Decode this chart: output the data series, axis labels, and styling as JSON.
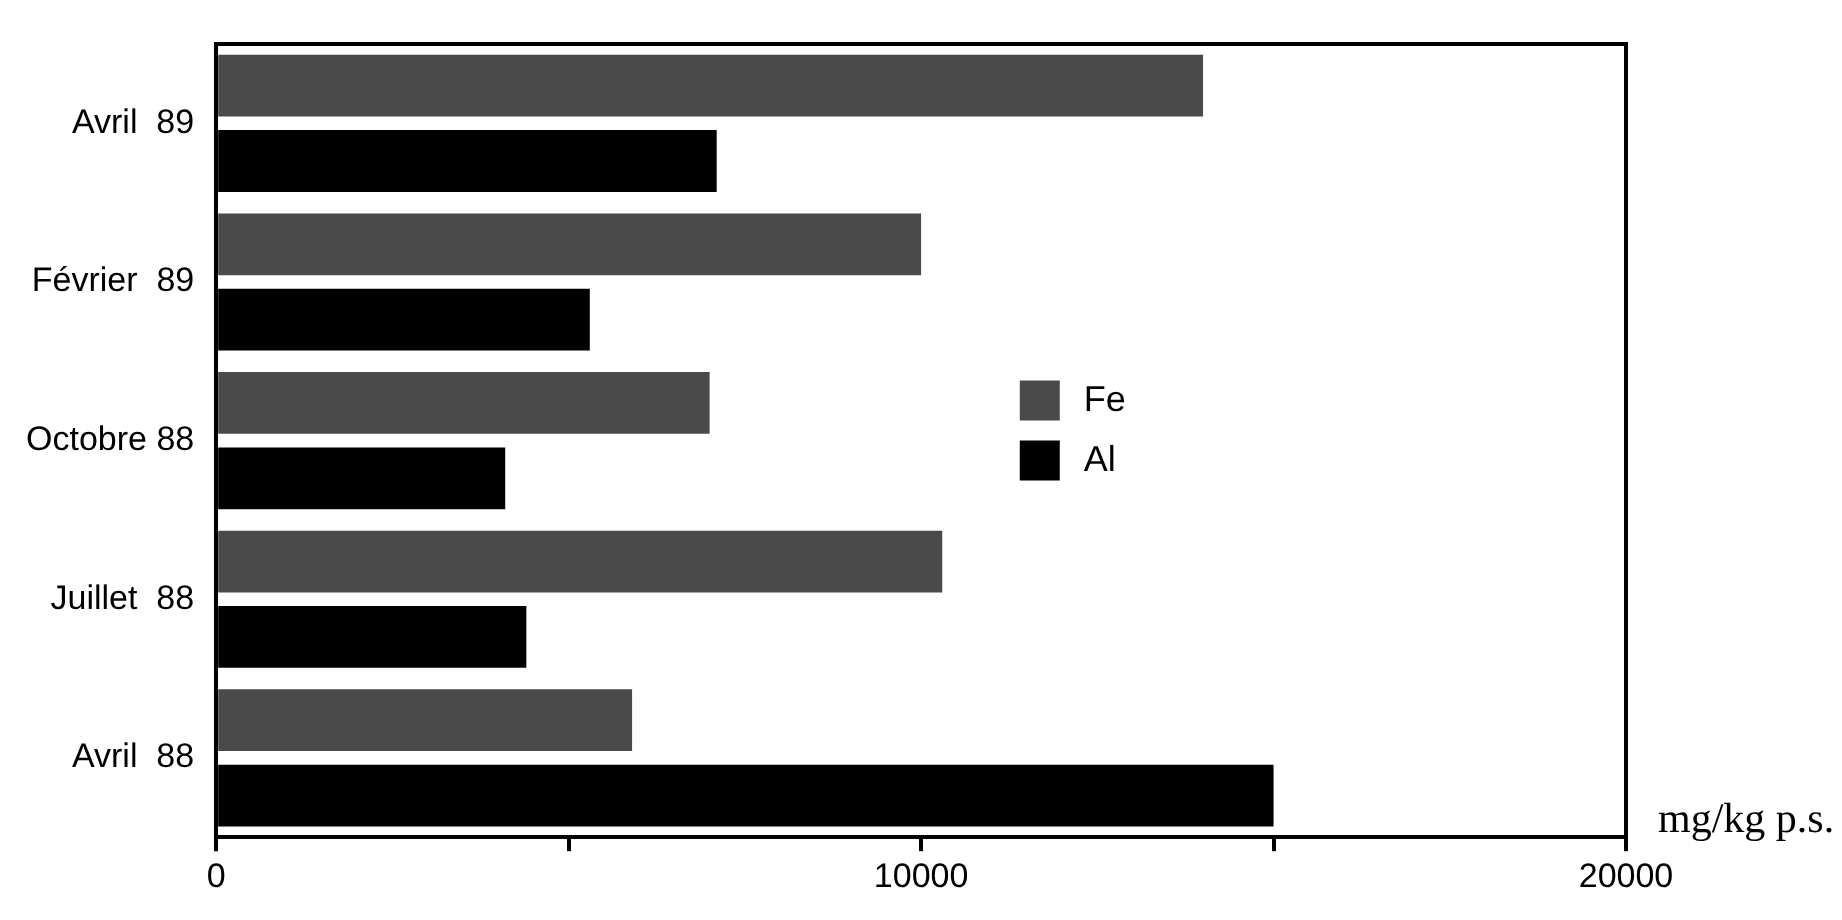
{
  "chart_data": {
    "type": "bar",
    "orientation": "horizontal",
    "xlabel": "mg/kg p.s.",
    "categories": [
      "Avril  89",
      "Février  89",
      "Octobre 88",
      "Juillet  88",
      "Avril  88"
    ],
    "series": [
      {
        "name": "Fe",
        "color": "#4a4a4a",
        "values": [
          14000,
          10000,
          7000,
          10300,
          5900
        ]
      },
      {
        "name": "Al",
        "color": "#000000",
        "values": [
          7100,
          5300,
          4100,
          4400,
          15000
        ]
      }
    ],
    "xlim": [
      0,
      20000
    ],
    "xticks": [
      0,
      {
        "value": 5000,
        "label": null
      },
      10000,
      {
        "value": 15000,
        "label": null
      },
      20000
    ],
    "legend": "right",
    "grid": false
  }
}
